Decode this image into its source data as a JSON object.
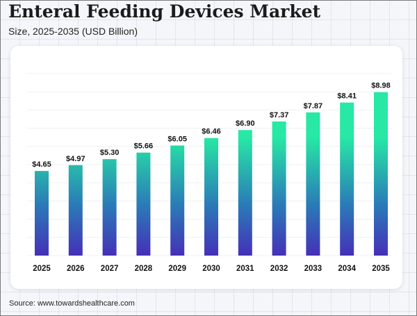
{
  "title": "Enteral Feeding Devices Market",
  "subtitle": "Size, 2025-2035 (USD Billion)",
  "source": "Source: www.towardshealthcare.com",
  "colors": {
    "bar_top": "#27e8a4",
    "bar_mid": "#2a7bb8",
    "bar_bottom": "#4530b8",
    "label": "#111111",
    "gridline": "#eef0f4"
  },
  "chart_data": {
    "type": "bar",
    "categories": [
      "2025",
      "2026",
      "2027",
      "2028",
      "2029",
      "2030",
      "2031",
      "2032",
      "2033",
      "2034",
      "2035"
    ],
    "values": [
      4.65,
      4.97,
      5.3,
      5.66,
      6.05,
      6.46,
      6.9,
      7.37,
      7.87,
      8.41,
      8.98
    ],
    "data_labels": [
      "$4.65",
      "$4.97",
      "$5.30",
      "$5.66",
      "$6.05",
      "$6.46",
      "$6.90",
      "$7.37",
      "$7.87",
      "$8.41",
      "$8.98"
    ],
    "ylim": [
      0,
      10
    ],
    "grid": true,
    "legend": false
  }
}
